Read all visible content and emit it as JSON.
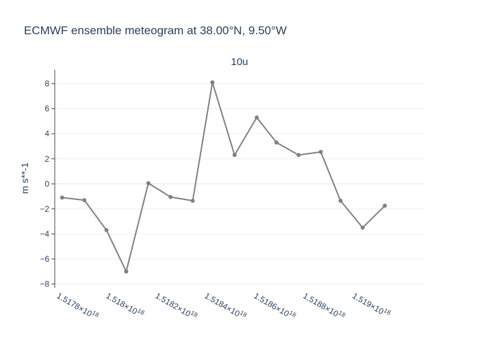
{
  "chart_data": {
    "type": "line",
    "title": "ECMWF ensemble meteogram at 38.00°N, 9.50°W",
    "subplot_title": "10u",
    "xlabel": "",
    "ylabel": "m s**-1",
    "ylim": [
      -8.3,
      9.1
    ],
    "xlim": [
      1.5177e+18,
      1.5192e+18
    ],
    "y_ticks": [
      -8,
      -6,
      -4,
      -2,
      0,
      2,
      4,
      6,
      8
    ],
    "y_tick_labels": [
      "−8",
      "−6",
      "−4",
      "−2",
      "0",
      "2",
      "4",
      "6",
      "8"
    ],
    "x_ticks": [
      1.5178e+18,
      1.518e+18,
      1.5182e+18,
      1.5184e+18,
      1.5186e+18,
      1.5188e+18,
      1.519e+18
    ],
    "x_tick_labels": [
      {
        "mantissa": "1.5178",
        "exponent": "18"
      },
      {
        "mantissa": "1.518",
        "exponent": "18"
      },
      {
        "mantissa": "1.5182",
        "exponent": "18"
      },
      {
        "mantissa": "1.5184",
        "exponent": "18"
      },
      {
        "mantissa": "1.5186",
        "exponent": "18"
      },
      {
        "mantissa": "1.5188",
        "exponent": "18"
      },
      {
        "mantissa": "1.519",
        "exponent": "18"
      }
    ],
    "grid": true,
    "series": [
      {
        "color": "#808080",
        "x": [
          1.51773e+18,
          1.51782e+18,
          1.51791e+18,
          1.51799e+18,
          1.51808e+18,
          1.51817e+18,
          1.51826e+18,
          1.51834e+18,
          1.51843e+18,
          1.51852e+18,
          1.5186e+18,
          1.51869e+18,
          1.51878e+18,
          1.51886e+18,
          1.51895e+18,
          1.51904e+18
        ],
        "values": [
          -1.1,
          -1.3,
          -3.7,
          -7.0,
          0.05,
          -1.05,
          -1.35,
          8.1,
          2.3,
          5.3,
          3.3,
          2.3,
          2.55,
          -1.35,
          -3.5,
          -1.75
        ]
      }
    ]
  }
}
